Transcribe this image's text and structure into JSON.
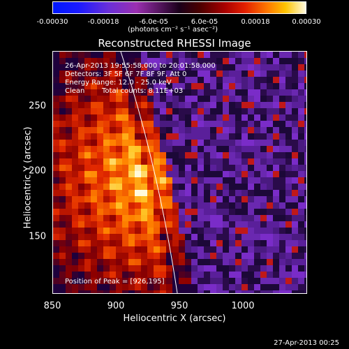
{
  "colorbar": {
    "ticks": [
      "-0.00030",
      "-0.00018",
      "-6.0e-05",
      "6.0e-05",
      "0.00018",
      "0.00030"
    ],
    "unit": "(photons cm⁻² s⁻¹ asec⁻²)"
  },
  "chart_data": {
    "type": "heatmap",
    "title": "Reconstructed RHESSI Image",
    "xlabel": "Heliocentric X (arcsec)",
    "ylabel": "Heliocentric Y (arcsec)",
    "x_ticks": [
      "850",
      "900",
      "950",
      "1000"
    ],
    "y_ticks": [
      "150",
      "200",
      "250"
    ],
    "xlim": [
      850,
      1040
    ],
    "ylim": [
      103,
      285
    ],
    "color_range": [
      -0.0003,
      0.0003
    ],
    "peak": [
      926,
      195
    ],
    "annotations": {
      "time": "26-Apr-2013 19:55:58.000 to 20:01:58.000",
      "detectors": "Detectors: 3F 5F 6F 7F 8F 9F, Att 0",
      "energy": "Energy Range: 12.0 - 25.0 keV",
      "method": "Clean",
      "counts": "Total counts: 8.11E+03",
      "peak_label": "Position of Peak = [926,195]"
    }
  },
  "footer": "27-Apr-2013 00:25"
}
